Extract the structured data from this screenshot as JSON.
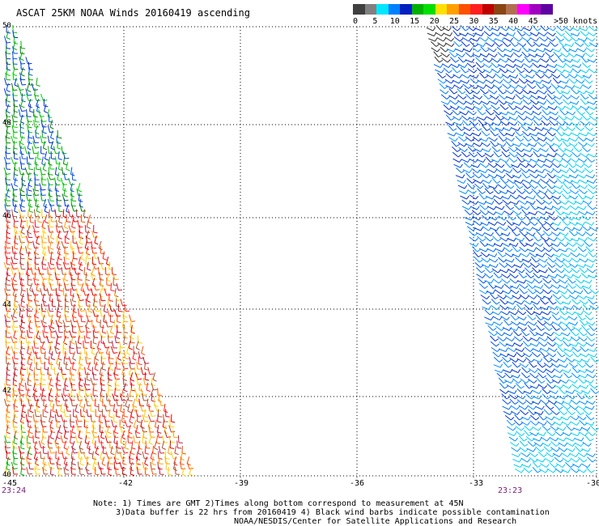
{
  "title": "ASCAT 25KM NOAA Winds 20160419 ascending",
  "legend": {
    "colors": [
      "#404040",
      "#808080",
      "#00e6ff",
      "#0080ff",
      "#0020c0",
      "#00b000",
      "#00e000",
      "#ffe000",
      "#ffa000",
      "#ff5000",
      "#ff2020",
      "#c00000",
      "#8b4513",
      "#b07050",
      "#ff00ff",
      "#a000c0",
      "#6000a0"
    ],
    "labels": [
      "0",
      "5",
      "10",
      "15",
      "20",
      "25",
      "30",
      "35",
      "40",
      "45"
    ],
    "unit": ">50 knots"
  },
  "map": {
    "lon_labels": [
      "-42",
      "-39",
      "-36",
      "-33",
      "-30"
    ],
    "lat_labels": [
      "50",
      "48",
      "46",
      "44",
      "42",
      "40"
    ],
    "corner_label": "-45",
    "lat_range": [
      39.9,
      50
    ],
    "lon_range": [
      -45,
      -30
    ]
  },
  "times": {
    "left": "23:24",
    "right": "23:23"
  },
  "notes": [
    "Note: 1) Times are GMT 2)Times along bottom correspond to measurement at 45N",
    "3)Data buffer is 22 hrs from 20160419 4) Black wind barbs indicate possible contamination",
    "NOAA/NESDIS/Center for Satellite Applications and Research"
  ],
  "colors": {
    "grid": "#000000",
    "time": "#7a1a7a"
  }
}
